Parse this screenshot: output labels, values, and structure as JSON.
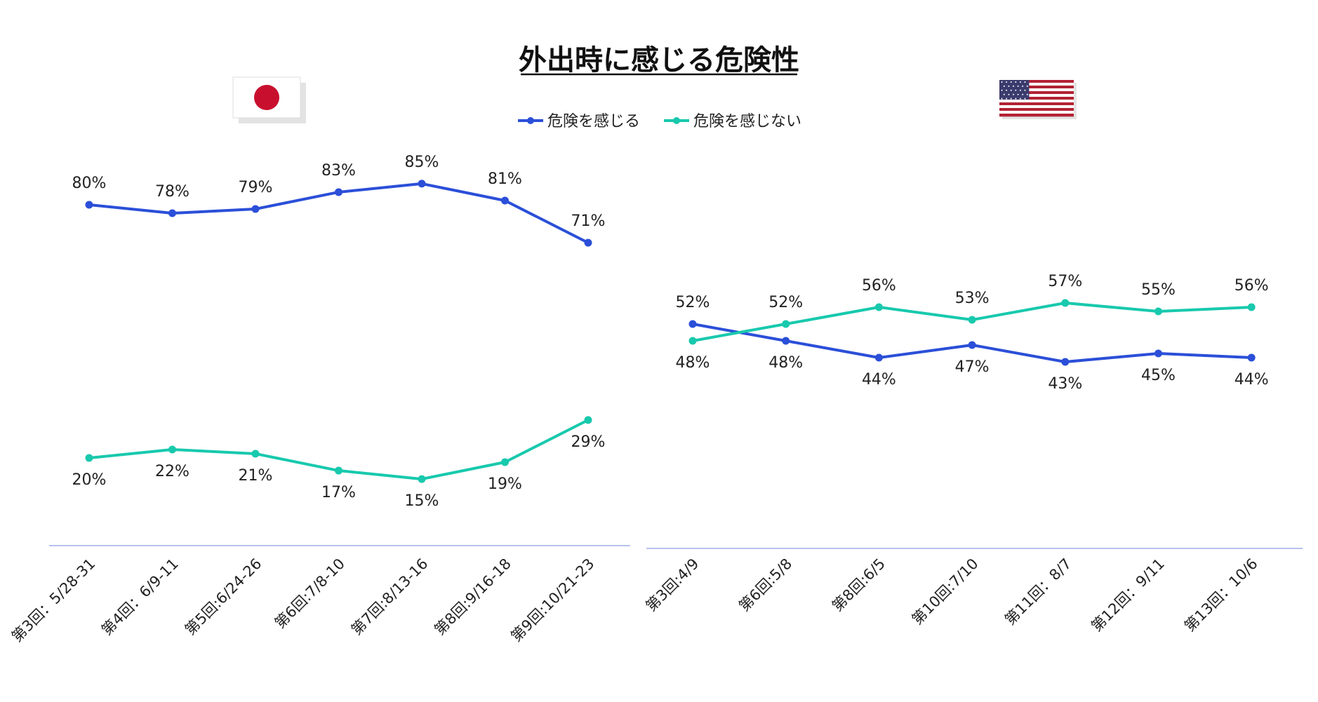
{
  "title": "外出時に感じる危険性",
  "legend": [
    {
      "label": "危険を感じる",
      "color": "#2b4fd8"
    },
    {
      "label": "危険を感じない",
      "color": "#18c9ad"
    }
  ],
  "flags": [
    {
      "name": "japan-flag-icon",
      "country": "Japan"
    },
    {
      "name": "usa-flag-icon",
      "country": "USA"
    }
  ],
  "chart_data": [
    {
      "type": "line",
      "region": "Japan",
      "categories": [
        "第3回：5/28-31",
        "第4回：6/9-11",
        "第5回:6/24-26",
        "第6回:7/8-10",
        "第7回:8/13-16",
        "第8回:9/16-18",
        "第9回:10/21-23"
      ],
      "series": [
        {
          "name": "危険を感じる",
          "color": "#2b4fd8",
          "values": [
            80,
            78,
            79,
            83,
            85,
            81,
            71
          ],
          "labels": [
            "80%",
            "78%",
            "79%",
            "83%",
            "85%",
            "81%",
            "71%"
          ]
        },
        {
          "name": "危険を感じない",
          "color": "#18c9ad",
          "values": [
            20,
            22,
            21,
            17,
            15,
            19,
            29
          ],
          "labels": [
            "20%",
            "22%",
            "21%",
            "17%",
            "15%",
            "19%",
            "29%"
          ]
        }
      ],
      "ylim": [
        0,
        100
      ],
      "grid": false
    },
    {
      "type": "line",
      "region": "USA",
      "categories": [
        "第3回:4/9",
        "第6回:5/8",
        "第8回:6/5",
        "第10回:7/10",
        "第11回：8/7",
        "第12回：9/11",
        "第13回：10/6"
      ],
      "series": [
        {
          "name": "危険を感じる",
          "color": "#2b4fd8",
          "values": [
            52,
            48,
            44,
            47,
            43,
            45,
            44
          ],
          "labels": [
            "52%",
            "48%",
            "44%",
            "47%",
            "43%",
            "45%",
            "44%"
          ]
        },
        {
          "name": "危険を感じない",
          "color": "#18c9ad",
          "values": [
            48,
            52,
            56,
            53,
            57,
            55,
            56
          ],
          "labels": [
            "48%",
            "52%",
            "56%",
            "53%",
            "57%",
            "55%",
            "56%"
          ]
        }
      ],
      "ylim": [
        0,
        100
      ],
      "grid": false
    }
  ]
}
